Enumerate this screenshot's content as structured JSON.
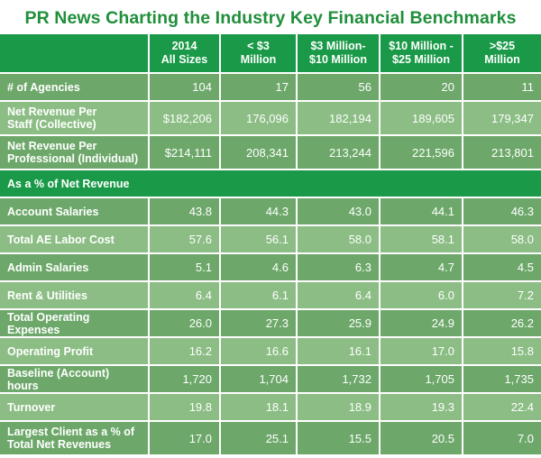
{
  "title": "PR News Charting the Industry Key Financial Benchmarks",
  "columns": [
    "",
    "2014\nAll Sizes",
    "< $3 Million",
    "$3 Million-\n$10 Million",
    "$10 Million -\n$25 Million",
    ">$25 Million"
  ],
  "top_rows": [
    {
      "label": "# of Agencies",
      "values": [
        "104",
        "17",
        "56",
        "20",
        "11"
      ]
    },
    {
      "label": "Net Revenue Per\nStaff (Collective)",
      "values": [
        "$182,206",
        "176,096",
        "182,194",
        "189,605",
        "179,347"
      ]
    },
    {
      "label": "Net Revenue Per\nProfessional (Individual)",
      "values": [
        "$214,111",
        "208,341",
        "213,244",
        "221,596",
        "213,801"
      ]
    }
  ],
  "section_label": "As a % of Net Revenue",
  "bottom_rows": [
    {
      "label": "Account Salaries",
      "values": [
        "43.8",
        "44.3",
        "43.0",
        "44.1",
        "46.3"
      ]
    },
    {
      "label": "Total AE Labor Cost",
      "values": [
        "57.6",
        "56.1",
        "58.0",
        "58.1",
        "58.0"
      ]
    },
    {
      "label": "Admin Salaries",
      "values": [
        "5.1",
        "4.6",
        "6.3",
        "4.7",
        "4.5"
      ]
    },
    {
      "label": "Rent & Utilities",
      "values": [
        "6.4",
        "6.1",
        "6.4",
        "6.0",
        "7.2"
      ]
    },
    {
      "label": "Total Operating Expenses",
      "values": [
        "26.0",
        "27.3",
        "25.9",
        "24.9",
        "26.2"
      ]
    },
    {
      "label": "Operating Profit",
      "values": [
        "16.2",
        "16.6",
        "16.1",
        "17.0",
        "15.8"
      ]
    },
    {
      "label": "Baseline (Account) hours",
      "values": [
        "1,720",
        "1,704",
        "1,732",
        "1,705",
        "1,735"
      ]
    },
    {
      "label": "Turnover",
      "values": [
        "19.8",
        "18.1",
        "18.9",
        "19.3",
        "22.4"
      ]
    },
    {
      "label": "Largest Client as a % of\nTotal Net Revenues",
      "values": [
        "17.0",
        "25.1",
        "15.5",
        "20.5",
        "7.0"
      ]
    }
  ],
  "colors": {
    "title": "#1f8f3a",
    "header": "#1a9a48",
    "row_dark": "#6da86a",
    "row_light": "#8bbd84"
  }
}
